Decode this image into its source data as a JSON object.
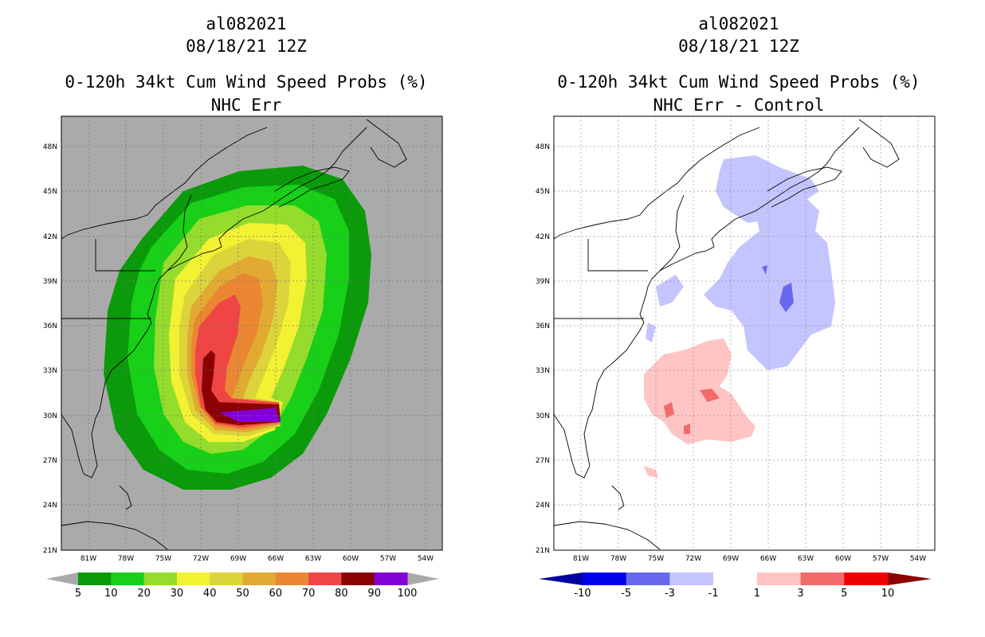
{
  "left_panel": {
    "storm_id": "al082021",
    "datetime": "08/18/21 12Z",
    "title": "0-120h 34kt Cum Wind Speed Probs (%)",
    "subtitle": "NHC Err",
    "colorbar": {
      "labels": [
        "5",
        "10",
        "20",
        "30",
        "40",
        "50",
        "60",
        "70",
        "80",
        "90",
        "100"
      ],
      "colors": [
        "#0a9a0a",
        "#17d017",
        "#95dc2c",
        "#f2f233",
        "#dcd43a",
        "#e2aa33",
        "#eb8732",
        "#f04545",
        "#8b0000",
        "#8300d4"
      ]
    }
  },
  "right_panel": {
    "storm_id": "al082021",
    "datetime": "08/18/21 12Z",
    "title": "0-120h 34kt Cum Wind Speed Probs (%)",
    "subtitle": "NHC Err - Control",
    "colorbar": {
      "labels": [
        "-10",
        "-5",
        "-3",
        "-1",
        "1",
        "3",
        "5",
        "10"
      ],
      "colors": [
        "#0000a0",
        "#0000ee",
        "#6868ee",
        "#c4c4ff",
        "#ffffff",
        "#ffc4c4",
        "#f26a6a",
        "#ee0000",
        "#8b0000"
      ]
    }
  },
  "map": {
    "lat_labels": [
      "48N",
      "45N",
      "42N",
      "39N",
      "36N",
      "33N",
      "30N",
      "27N",
      "24N",
      "21N"
    ],
    "lon_labels": [
      "81W",
      "78W",
      "75W",
      "72W",
      "69W",
      "66W",
      "63W",
      "60W",
      "57W",
      "54W"
    ],
    "background_left": "#aaaaaa",
    "background_right": "#ffffff"
  }
}
